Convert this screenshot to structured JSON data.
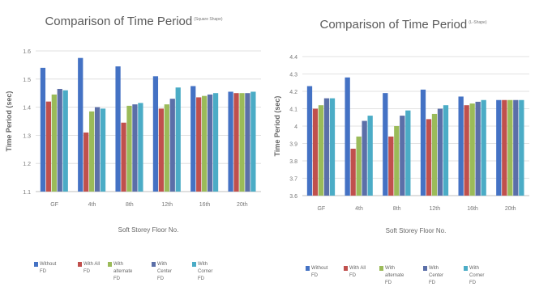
{
  "chart_data": [
    {
      "type": "bar",
      "title": "Comparison of Time Period",
      "subtitle": "(Square Shape)",
      "xlabel": "Soft Storey Floor No.",
      "ylabel": "Time Period (sec)",
      "ylim": [
        1.1,
        1.6
      ],
      "yticks": [
        "1.1",
        "1.2",
        "1.3",
        "1.4",
        "1.5",
        "1.6"
      ],
      "grid": true,
      "legend_position": "bottom",
      "categories": [
        "GF",
        "4th",
        "8th",
        "12th",
        "16th",
        "20th"
      ],
      "series": [
        {
          "name": "Without FD",
          "color": "#4472c4",
          "values": [
            1.54,
            1.575,
            1.545,
            1.51,
            1.475,
            1.455
          ]
        },
        {
          "name": "With All FD",
          "color": "#c0504d",
          "values": [
            1.42,
            1.31,
            1.345,
            1.395,
            1.435,
            1.45
          ]
        },
        {
          "name": "With alternate FD",
          "color": "#9bbb59",
          "values": [
            1.445,
            1.385,
            1.405,
            1.41,
            1.44,
            1.45
          ]
        },
        {
          "name": "With Center FD",
          "color": "#5b6fa8",
          "values": [
            1.465,
            1.4,
            1.41,
            1.43,
            1.445,
            1.45
          ]
        },
        {
          "name": "With Corner FD",
          "color": "#4bacc6",
          "values": [
            1.46,
            1.395,
            1.415,
            1.47,
            1.45,
            1.455
          ]
        }
      ]
    },
    {
      "type": "bar",
      "title": "Comparison of Time Period",
      "subtitle": "(L-Shape)",
      "xlabel": "Soft Storey Floor No.",
      "ylabel": "Time Period (sec)",
      "ylim": [
        3.6,
        4.4
      ],
      "yticks": [
        "3.6",
        "3.7",
        "3.8",
        "3.9",
        "4",
        "4.1",
        "4.2",
        "4.3",
        "4.4"
      ],
      "grid": true,
      "legend_position": "bottom",
      "categories": [
        "GF",
        "4th",
        "8th",
        "12th",
        "16th",
        "20th"
      ],
      "series": [
        {
          "name": "Without FD",
          "color": "#4472c4",
          "values": [
            4.23,
            4.28,
            4.19,
            4.21,
            4.17,
            4.15
          ]
        },
        {
          "name": "With All FD",
          "color": "#c0504d",
          "values": [
            4.1,
            3.87,
            3.94,
            4.04,
            4.12,
            4.15
          ]
        },
        {
          "name": "With alternate FD",
          "color": "#9bbb59",
          "values": [
            4.12,
            3.94,
            4.0,
            4.07,
            4.13,
            4.15
          ]
        },
        {
          "name": "With Center FD",
          "color": "#5b6fa8",
          "values": [
            4.16,
            4.03,
            4.06,
            4.1,
            4.14,
            4.15
          ]
        },
        {
          "name": "With Corner FD",
          "color": "#4bacc6",
          "values": [
            4.16,
            4.06,
            4.09,
            4.12,
            4.15,
            4.15
          ]
        }
      ]
    }
  ]
}
